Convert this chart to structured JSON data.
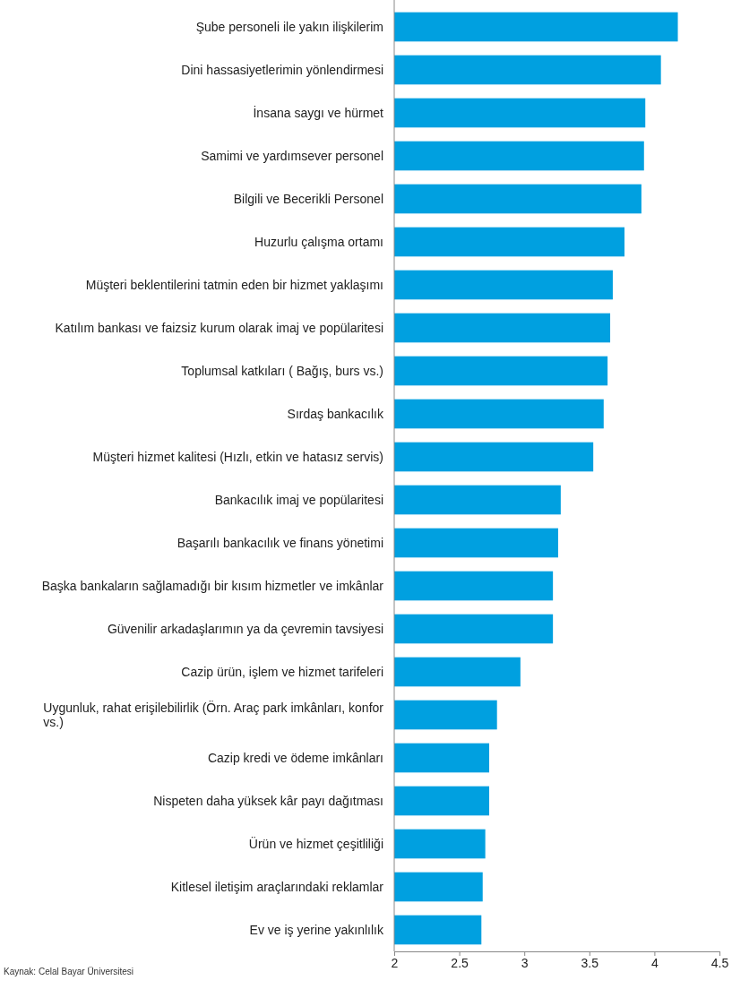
{
  "chart_data": {
    "type": "bar",
    "orientation": "horizontal",
    "categories": [
      "Şube personeli ile yakın ilişkilerim",
      "Dini hassasiyetlerimin yönlendirmesi",
      "İnsana saygı ve hürmet",
      "Samimi ve yardımsever personel",
      "Bilgili ve Becerikli Personel",
      "Huzurlu çalışma ortamı",
      "Müşteri beklentilerini tatmin eden bir hizmet yaklaşımı",
      "Katılım bankası ve faizsiz kurum olarak imaj ve popülaritesi",
      "Toplumsal katkıları ( Bağış, burs vs.)",
      "Sırdaş bankacılık",
      "Müşteri hizmet kalitesi (Hızlı, etkin ve hatasız servis)",
      "Bankacılık imaj ve popülaritesi",
      "Başarılı bankacılık ve finans yönetimi",
      "Başka bankaların sağlamadığı bir kısım hizmetler ve imkânlar",
      "Güvenilir arkadaşlarımın ya da çevremin tavsiyesi",
      "Cazip ürün, işlem ve hizmet tarifeleri",
      "Uygunluk, rahat erişilebilirlik (Örn. Araç park imkânları, konfor vs.)",
      "Cazip kredi ve ödeme imkânları",
      "Nispeten daha yüksek kâr payı dağıtması",
      "Ürün ve hizmet çeşitliliği",
      "Kitlesel iletişim araçlarındaki reklamlar",
      "Ev ve iş yerine yakınlılık"
    ],
    "values": [
      4.18,
      4.05,
      3.93,
      3.92,
      3.9,
      3.77,
      3.68,
      3.66,
      3.64,
      3.61,
      3.53,
      3.28,
      3.26,
      3.22,
      3.22,
      2.97,
      2.79,
      2.73,
      2.73,
      2.7,
      2.68,
      2.67
    ],
    "color": "#00a0e0",
    "xlim": [
      2,
      4.5
    ],
    "xticks": [
      2,
      2.5,
      3,
      3.5,
      4,
      4.5
    ],
    "annotations": [
      "Kaynak: Celal Bayar Üniversitesi"
    ]
  }
}
